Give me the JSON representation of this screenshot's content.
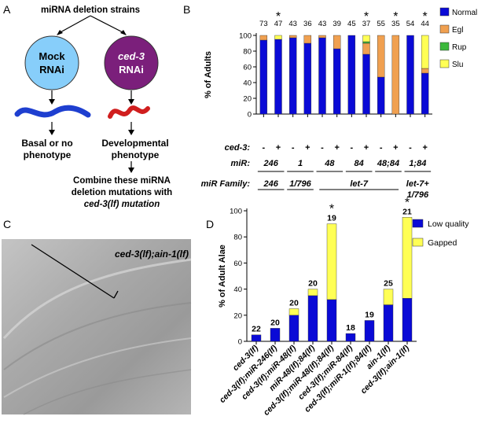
{
  "panelA": {
    "letter": "A",
    "header": "miRNA deletion strains",
    "mock_l1": "Mock",
    "mock_l2": "RNAi",
    "ced_l1": "ced-3",
    "ced_l2": "RNAi",
    "basal_l1": "Basal or no",
    "basal_l2": "phenotype",
    "dev_l1": "Developmental",
    "dev_l2": "phenotype",
    "combine_l1": "Combine these miRNA",
    "combine_l2": "deletion mutations with",
    "combine_l3": "ced-3(lf) mutation",
    "colors": {
      "mock": "#87CEFA",
      "ced": "#7B1F7B",
      "worm_basal": "#1E3FD0",
      "worm_dev": "#D01E1E"
    }
  },
  "panelB": {
    "letter": "B",
    "ylabel": "% of Adults",
    "ced3_label": "ced-3:",
    "mir_label": "miR:",
    "family_label": "miR Family:",
    "mir_groups": [
      "246",
      "1",
      "48",
      "84",
      "48;84",
      "1;84"
    ],
    "families": [
      "246",
      "1/796",
      "let-7",
      "let-7+",
      "1/796"
    ],
    "ced3_signs": [
      "-",
      "+",
      "-",
      "+",
      "-",
      "+",
      "-",
      "+",
      "-",
      "+",
      "-",
      "+"
    ]
  },
  "panelC": {
    "letter": "C",
    "title": "ced-3(lf);ain-1(lf)"
  },
  "panelD": {
    "letter": "D",
    "ylabel": "% of Adult Alae"
  },
  "chart_data": [
    {
      "type": "bar",
      "stacked": true,
      "ylabel": "% of Adults",
      "ylim": [
        0,
        100
      ],
      "yticks": [
        0,
        20,
        40,
        60,
        80,
        100
      ],
      "categories": [
        "-",
        "+",
        "-",
        "+",
        "-",
        "+",
        "-",
        "+",
        "-",
        "+",
        "-",
        "+"
      ],
      "n_labels": [
        "73",
        "47",
        "43",
        "36",
        "43",
        "39",
        "45",
        "37",
        "55",
        "35",
        "54",
        "44"
      ],
      "stars": [
        false,
        true,
        false,
        false,
        false,
        false,
        false,
        true,
        false,
        true,
        false,
        true
      ],
      "series": [
        {
          "name": "Normal",
          "color": "#0A0AD6",
          "values": [
            94,
            95,
            97,
            90,
            97,
            83,
            100,
            76,
            47,
            0,
            100,
            52
          ]
        },
        {
          "name": "Egl",
          "color": "#F0A050",
          "values": [
            6,
            0,
            3,
            10,
            3,
            17,
            0,
            14,
            53,
            100,
            0,
            6
          ]
        },
        {
          "name": "Rup",
          "color": "#3CB83C",
          "values": [
            0,
            0,
            0,
            0,
            0,
            0,
            0,
            2,
            0,
            0,
            0,
            0
          ]
        },
        {
          "name": "Slu",
          "color": "#FFFF55",
          "values": [
            0,
            5,
            0,
            0,
            0,
            0,
            0,
            8,
            0,
            0,
            0,
            42
          ]
        }
      ],
      "legend": "right"
    },
    {
      "type": "bar",
      "stacked": true,
      "ylabel": "% of Adult Alae",
      "ylim": [
        0,
        100
      ],
      "yticks": [
        0,
        20,
        40,
        60,
        80,
        100
      ],
      "categories": [
        "ced-3(lf)",
        "ced-3(lf);miR-246(lf)",
        "ced-3(lf);miR-48(lf)",
        "miR-48(lf);84(lf)",
        "ced-3(lf);miR-48(lf);84(lf)",
        "ced-3(lf);miR-84(lf)",
        "ced-3(lf);miR-1(lf);84(lf)",
        "ain-1(lf)",
        "ced-3(lf);ain-1(lf)"
      ],
      "n_labels": [
        "22",
        "20",
        "20",
        "20",
        "19",
        "18",
        "19",
        "25",
        "21"
      ],
      "stars": [
        false,
        false,
        false,
        false,
        true,
        false,
        false,
        false,
        true
      ],
      "series": [
        {
          "name": "Low quality",
          "color": "#0A0AD6",
          "values": [
            5,
            10,
            20,
            35,
            32,
            6,
            16,
            28,
            33
          ]
        },
        {
          "name": "Gapped",
          "color": "#FFFF55",
          "values": [
            0,
            0,
            5,
            5,
            58,
            0,
            0,
            12,
            62
          ]
        }
      ],
      "legend": "top-right"
    }
  ]
}
